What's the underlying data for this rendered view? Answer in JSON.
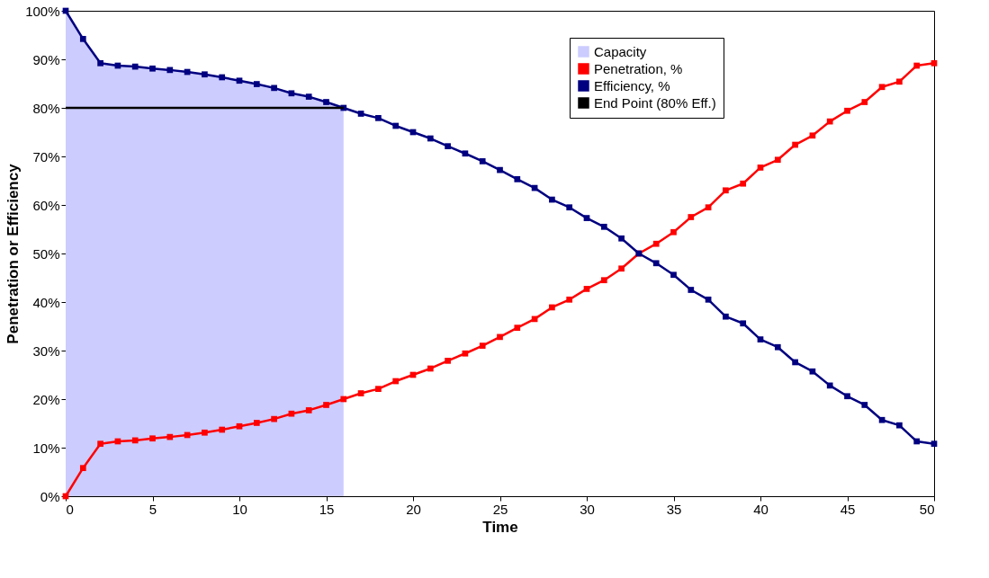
{
  "chart_data": {
    "type": "line",
    "xlabel": "Time",
    "ylabel": "Penetration or Efficiency",
    "x": [
      0,
      1,
      2,
      3,
      4,
      5,
      6,
      7,
      8,
      9,
      10,
      11,
      12,
      13,
      14,
      15,
      16,
      17,
      18,
      19,
      20,
      21,
      22,
      23,
      24,
      25,
      26,
      27,
      28,
      29,
      30,
      31,
      32,
      33,
      34,
      35,
      36,
      37,
      38,
      39,
      40,
      41,
      42,
      43,
      44,
      45,
      46,
      47,
      48,
      49,
      50
    ],
    "series": [
      {
        "name": "Capacity",
        "type": "area",
        "marker": "none",
        "color": "#ccccff",
        "x": [
          0,
          1,
          2,
          3,
          4,
          5,
          6,
          7,
          8,
          9,
          10,
          11,
          12,
          13,
          14,
          15,
          16
        ],
        "values": [
          100,
          94.2,
          89.2,
          88.7,
          88.5,
          88.1,
          87.8,
          87.4,
          86.9,
          86.3,
          85.6,
          84.9,
          84.1,
          83.0,
          82.3,
          81.2,
          80
        ]
      },
      {
        "name": "Penetration, %",
        "color": "#ff0000",
        "values": [
          0,
          5.8,
          10.8,
          11.3,
          11.5,
          11.9,
          12.2,
          12.6,
          13.1,
          13.7,
          14.4,
          15.1,
          15.9,
          17.0,
          17.7,
          18.8,
          20,
          21.2,
          22.1,
          23.7,
          25,
          26.3,
          27.9,
          29.4,
          31,
          32.8,
          34.7,
          36.5,
          38.9,
          40.5,
          42.7,
          44.5,
          46.9,
          50,
          52,
          54.4,
          57.5,
          59.5,
          63,
          64.4,
          67.7,
          69.3,
          72.4,
          74.3,
          77.2,
          79.4,
          81.2,
          84.3,
          85.4,
          88.7,
          89.2
        ]
      },
      {
        "name": "Efficiency, %",
        "color": "#000080",
        "values": [
          100,
          94.2,
          89.2,
          88.7,
          88.5,
          88.1,
          87.8,
          87.4,
          86.9,
          86.3,
          85.6,
          84.9,
          84.1,
          83.0,
          82.3,
          81.2,
          80,
          78.8,
          77.9,
          76.3,
          75,
          73.7,
          72.1,
          70.6,
          69,
          67.2,
          65.3,
          63.5,
          61.1,
          59.5,
          57.3,
          55.5,
          53.1,
          50,
          48,
          45.6,
          42.5,
          40.5,
          37,
          35.6,
          32.3,
          30.7,
          27.6,
          25.7,
          22.8,
          20.6,
          18.8,
          15.7,
          14.6,
          11.3,
          10.8
        ]
      },
      {
        "name": "End Point (80% Eff.)",
        "color": "#000000",
        "marker": "none",
        "x": [
          0,
          16
        ],
        "values": [
          80,
          80
        ]
      }
    ],
    "marker": "square",
    "line_style": "solid",
    "grid": false,
    "legend": "top right",
    "xlim": [
      0,
      50
    ],
    "xticks": [
      0,
      5,
      10,
      15,
      20,
      25,
      30,
      35,
      40,
      45,
      50
    ],
    "ylim": [
      0,
      100
    ],
    "yticks": [
      {
        "value": 0,
        "label": "0%"
      },
      {
        "value": 10,
        "label": "10%"
      },
      {
        "value": 20,
        "label": "20%"
      },
      {
        "value": 30,
        "label": "30%"
      },
      {
        "value": 40,
        "label": "40%"
      },
      {
        "value": 50,
        "label": "50%"
      },
      {
        "value": 60,
        "label": "60%"
      },
      {
        "value": 70,
        "label": "70%"
      },
      {
        "value": 80,
        "label": "80%"
      },
      {
        "value": 90,
        "label": "90%"
      },
      {
        "value": 100,
        "label": "100%"
      }
    ]
  }
}
